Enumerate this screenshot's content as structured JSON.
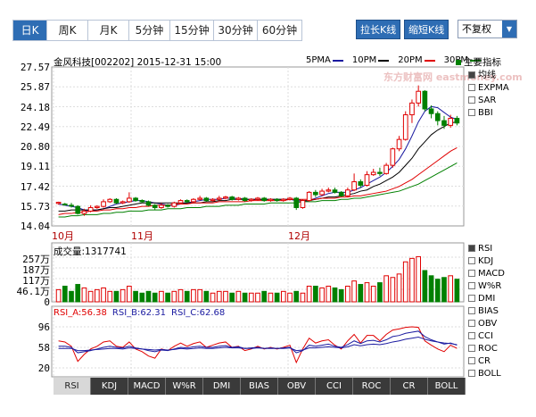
{
  "period_tabs": [
    {
      "label": "日K",
      "active": true
    },
    {
      "label": "周K"
    },
    {
      "label": "月K"
    },
    {
      "label": "5分钟"
    },
    {
      "label": "15分钟"
    },
    {
      "label": "30分钟"
    },
    {
      "label": "60分钟"
    }
  ],
  "buttons": {
    "zoom_in": "拉长K线",
    "zoom_out": "缩短K线"
  },
  "adjust_select": {
    "value": "不复权"
  },
  "stock_info": "金风科技[002202] 2015-12-31 15:00",
  "ma_legend": [
    {
      "label": "5PMA",
      "color": "#1a1aa0"
    },
    {
      "label": "10PM",
      "color": "#000000"
    },
    {
      "label": "20PM",
      "color": "#e00000"
    },
    {
      "label": "30PM",
      "color": "#008000"
    }
  ],
  "main_indicator_label": "主要指标",
  "watermark": "东方财富网 eastmoney.com",
  "price_axis": [
    "27.57",
    "25.87",
    "24.18",
    "22.49",
    "20.80",
    "19.11",
    "17.42",
    "15.73",
    "14.04"
  ],
  "month_labels": [
    "10月",
    "11月",
    "12月"
  ],
  "main_options": [
    {
      "label": "均线",
      "checked": true
    },
    {
      "label": "EXPMA"
    },
    {
      "label": "SAR"
    },
    {
      "label": "BBI"
    }
  ],
  "volume_label": "成交量:1317741",
  "volume_axis": [
    "257万",
    "187万",
    "117万",
    "46.1万",
    "0"
  ],
  "vol_options": [
    {
      "label": "RSI",
      "checked": true
    },
    {
      "label": "KDJ"
    },
    {
      "label": "MACD"
    },
    {
      "label": "W%R"
    },
    {
      "label": "DMI"
    },
    {
      "label": "BIAS"
    },
    {
      "label": "OBV"
    },
    {
      "label": "CCI"
    },
    {
      "label": "ROC"
    },
    {
      "label": "CR"
    },
    {
      "label": "BOLL"
    }
  ],
  "rsi_legend": [
    {
      "label": "RSI_A:56.38",
      "color": "#e00000"
    },
    {
      "label": "RSI_B:62.31",
      "color": "#1a1aa0"
    },
    {
      "label": "RSI_C:62.68",
      "color": "#1a1aa0"
    }
  ],
  "rsi_axis": [
    "96",
    "58",
    "20"
  ],
  "indicator_tabs": [
    {
      "label": "RSI",
      "active": true
    },
    {
      "label": "KDJ"
    },
    {
      "label": "MACD"
    },
    {
      "label": "W%R"
    },
    {
      "label": "DMI"
    },
    {
      "label": "BIAS"
    },
    {
      "label": "OBV"
    },
    {
      "label": "CCI"
    },
    {
      "label": "ROC"
    },
    {
      "label": "CR"
    },
    {
      "label": "BOLL"
    }
  ],
  "chart_data": {
    "type": "candlestick",
    "price_range": [
      14.04,
      27.57
    ],
    "candles": [
      [
        15.95,
        16.05,
        15.85,
        16.1
      ],
      [
        15.9,
        15.85,
        15.8,
        16.0
      ],
      [
        15.8,
        15.75,
        15.6,
        16.0
      ],
      [
        15.7,
        15.1,
        15.0,
        15.8
      ],
      [
        15.1,
        15.3,
        14.9,
        15.5
      ],
      [
        15.3,
        15.6,
        15.2,
        15.8
      ],
      [
        15.6,
        15.7,
        15.5,
        15.8
      ],
      [
        15.7,
        16.1,
        15.6,
        16.3
      ],
      [
        16.1,
        16.3,
        16.0,
        16.4
      ],
      [
        16.3,
        16.0,
        15.9,
        16.4
      ],
      [
        16.0,
        16.1,
        15.9,
        16.2
      ],
      [
        16.1,
        16.4,
        16.0,
        16.9
      ],
      [
        16.4,
        16.2,
        16.1,
        16.5
      ],
      [
        16.2,
        16.1,
        16.0,
        16.3
      ],
      [
        16.1,
        15.8,
        15.7,
        16.2
      ],
      [
        15.8,
        15.6,
        15.4,
        15.9
      ],
      [
        15.6,
        15.8,
        15.5,
        16.0
      ],
      [
        15.8,
        15.7,
        15.6,
        15.9
      ],
      [
        15.7,
        16.0,
        15.6,
        16.1
      ],
      [
        16.0,
        16.2,
        15.9,
        16.3
      ],
      [
        16.2,
        16.1,
        16.0,
        16.3
      ],
      [
        16.1,
        16.3,
        16.0,
        16.4
      ],
      [
        16.3,
        16.4,
        16.2,
        16.6
      ],
      [
        16.4,
        16.2,
        16.1,
        16.5
      ],
      [
        16.2,
        16.3,
        16.1,
        16.4
      ],
      [
        16.3,
        16.4,
        16.2,
        16.6
      ],
      [
        16.4,
        16.5,
        16.3,
        16.6
      ],
      [
        16.5,
        16.3,
        16.2,
        16.6
      ],
      [
        16.3,
        16.4,
        16.2,
        16.5
      ],
      [
        16.4,
        16.2,
        16.1,
        16.5
      ],
      [
        16.2,
        16.3,
        16.1,
        16.4
      ],
      [
        16.3,
        16.4,
        16.2,
        16.5
      ],
      [
        16.4,
        16.2,
        16.1,
        16.5
      ],
      [
        16.2,
        16.3,
        16.1,
        16.4
      ],
      [
        16.3,
        16.2,
        16.1,
        16.4
      ],
      [
        16.2,
        16.3,
        16.1,
        16.4
      ],
      [
        16.3,
        16.4,
        16.2,
        16.5
      ],
      [
        16.4,
        15.6,
        15.4,
        16.5
      ],
      [
        15.6,
        16.2,
        15.5,
        16.3
      ],
      [
        16.2,
        16.9,
        16.1,
        17.0
      ],
      [
        16.9,
        16.7,
        16.5,
        17.1
      ],
      [
        16.7,
        17.0,
        16.6,
        17.2
      ],
      [
        17.0,
        17.1,
        16.9,
        17.3
      ],
      [
        17.1,
        16.9,
        16.8,
        17.3
      ],
      [
        16.9,
        16.6,
        16.5,
        17.0
      ],
      [
        16.6,
        17.1,
        16.5,
        17.3
      ],
      [
        17.1,
        17.8,
        17.0,
        18.5
      ],
      [
        17.8,
        17.5,
        17.3,
        18.0
      ],
      [
        17.5,
        18.4,
        17.4,
        18.7
      ],
      [
        18.4,
        18.6,
        18.3,
        18.9
      ],
      [
        18.6,
        18.5,
        18.3,
        19.0
      ],
      [
        18.5,
        19.2,
        18.4,
        19.4
      ],
      [
        19.2,
        20.6,
        19.0,
        20.7
      ],
      [
        20.6,
        21.4,
        20.4,
        21.7
      ],
      [
        21.4,
        23.5,
        21.3,
        23.8
      ],
      [
        23.5,
        24.5,
        22.8,
        24.8
      ],
      [
        24.5,
        25.5,
        24.2,
        26.0
      ],
      [
        25.5,
        24.0,
        23.8,
        25.6
      ],
      [
        24.0,
        23.6,
        23.2,
        24.3
      ],
      [
        23.6,
        23.0,
        22.6,
        23.8
      ],
      [
        23.0,
        22.6,
        22.3,
        23.4
      ],
      [
        22.6,
        23.2,
        22.4,
        23.5
      ],
      [
        23.2,
        22.8,
        22.6,
        23.4
      ]
    ],
    "ma": {
      "5PMA": [
        15.9,
        15.8,
        15.7,
        15.6,
        15.4,
        15.3,
        15.4,
        15.5,
        15.7,
        15.9,
        16.0,
        16.1,
        16.2,
        16.2,
        16.1,
        16.0,
        15.9,
        15.8,
        15.8,
        15.9,
        16.0,
        16.1,
        16.2,
        16.3,
        16.3,
        16.3,
        16.4,
        16.4,
        16.4,
        16.3,
        16.3,
        16.3,
        16.3,
        16.3,
        16.3,
        16.3,
        16.3,
        16.2,
        16.1,
        16.2,
        16.4,
        16.6,
        16.8,
        16.9,
        16.9,
        16.9,
        17.1,
        17.3,
        17.6,
        17.9,
        18.2,
        18.6,
        19.1,
        19.7,
        20.6,
        21.7,
        22.9,
        23.8,
        24.2,
        24.1,
        23.7,
        23.3,
        23.1
      ],
      "10PM": [
        15.3,
        15.3,
        15.4,
        15.4,
        15.4,
        15.4,
        15.4,
        15.5,
        15.6,
        15.6,
        15.7,
        15.8,
        15.9,
        16.0,
        16.0,
        16.0,
        16.0,
        16.0,
        16.0,
        16.0,
        16.0,
        16.0,
        16.0,
        16.1,
        16.1,
        16.2,
        16.2,
        16.3,
        16.3,
        16.3,
        16.3,
        16.3,
        16.3,
        16.3,
        16.3,
        16.3,
        16.3,
        16.3,
        16.2,
        16.2,
        16.3,
        16.4,
        16.5,
        16.5,
        16.6,
        16.7,
        16.8,
        17.0,
        17.1,
        17.4,
        17.6,
        17.9,
        18.2,
        18.6,
        19.2,
        19.8,
        20.6,
        21.2,
        21.8,
        22.2,
        22.5,
        22.8,
        22.9
      ],
      "20PM": [
        15.0,
        15.1,
        15.1,
        15.2,
        15.2,
        15.3,
        15.3,
        15.4,
        15.4,
        15.5,
        15.5,
        15.6,
        15.6,
        15.7,
        15.7,
        15.8,
        15.8,
        15.8,
        15.9,
        15.9,
        15.9,
        16.0,
        16.0,
        16.0,
        16.0,
        16.1,
        16.1,
        16.1,
        16.1,
        16.1,
        16.2,
        16.2,
        16.2,
        16.2,
        16.2,
        16.2,
        16.3,
        16.3,
        16.3,
        16.3,
        16.3,
        16.4,
        16.4,
        16.4,
        16.5,
        16.5,
        16.6,
        16.6,
        16.7,
        16.8,
        16.9,
        17.0,
        17.2,
        17.4,
        17.7,
        18.0,
        18.4,
        18.8,
        19.2,
        19.6,
        20.0,
        20.4,
        20.7
      ],
      "30PM": [
        14.8,
        14.8,
        14.9,
        14.9,
        15.0,
        15.0,
        15.0,
        15.1,
        15.1,
        15.2,
        15.2,
        15.3,
        15.3,
        15.3,
        15.4,
        15.4,
        15.4,
        15.5,
        15.5,
        15.5,
        15.6,
        15.6,
        15.6,
        15.7,
        15.7,
        15.7,
        15.8,
        15.8,
        15.8,
        15.9,
        15.9,
        15.9,
        15.9,
        16.0,
        16.0,
        16.0,
        16.0,
        16.0,
        16.1,
        16.1,
        16.1,
        16.2,
        16.2,
        16.2,
        16.3,
        16.3,
        16.4,
        16.4,
        16.5,
        16.6,
        16.7,
        16.8,
        16.9,
        17.0,
        17.2,
        17.4,
        17.6,
        17.9,
        18.2,
        18.5,
        18.8,
        19.1,
        19.4
      ]
    },
    "volume": [
      0.7,
      0.9,
      0.6,
      1.0,
      0.8,
      0.6,
      0.7,
      0.8,
      0.6,
      0.6,
      0.7,
      0.9,
      0.6,
      0.5,
      0.6,
      0.5,
      0.6,
      0.5,
      0.6,
      0.7,
      0.6,
      0.7,
      0.7,
      0.6,
      0.5,
      0.6,
      0.6,
      0.5,
      0.6,
      0.5,
      0.5,
      0.5,
      0.6,
      0.5,
      0.5,
      0.6,
      0.5,
      0.6,
      0.5,
      0.9,
      0.9,
      0.8,
      0.9,
      0.8,
      0.7,
      0.9,
      1.2,
      1.0,
      1.1,
      0.9,
      1.1,
      1.5,
      1.4,
      1.6,
      2.3,
      2.5,
      2.6,
      1.8,
      1.5,
      1.3,
      1.4,
      1.5,
      1.3
    ],
    "rsi_a": [
      70,
      68,
      60,
      32,
      45,
      55,
      60,
      68,
      70,
      60,
      58,
      68,
      55,
      50,
      42,
      38,
      55,
      52,
      60,
      66,
      60,
      65,
      68,
      58,
      62,
      66,
      68,
      58,
      60,
      52,
      55,
      60,
      55,
      58,
      55,
      58,
      62,
      30,
      55,
      75,
      66,
      70,
      72,
      62,
      55,
      70,
      82,
      66,
      80,
      80,
      70,
      82,
      90,
      92,
      95,
      96,
      95,
      70,
      62,
      55,
      50,
      62,
      56
    ],
    "rsi_b": [
      60,
      60,
      58,
      48,
      50,
      52,
      55,
      58,
      60,
      58,
      57,
      60,
      57,
      55,
      52,
      50,
      53,
      52,
      55,
      58,
      57,
      59,
      60,
      58,
      58,
      60,
      61,
      58,
      59,
      56,
      57,
      58,
      56,
      57,
      56,
      57,
      58,
      48,
      52,
      62,
      60,
      62,
      64,
      60,
      58,
      63,
      70,
      65,
      70,
      71,
      68,
      72,
      78,
      80,
      84,
      86,
      88,
      78,
      72,
      68,
      64,
      66,
      62
    ],
    "rsi_c": [
      56,
      56,
      56,
      52,
      52,
      53,
      54,
      55,
      56,
      56,
      55,
      57,
      56,
      55,
      54,
      53,
      54,
      53,
      54,
      56,
      55,
      56,
      57,
      56,
      56,
      57,
      58,
      57,
      57,
      56,
      56,
      57,
      56,
      56,
      56,
      56,
      57,
      52,
      53,
      57,
      57,
      58,
      59,
      58,
      57,
      59,
      63,
      61,
      63,
      64,
      63,
      65,
      68,
      70,
      73,
      75,
      77,
      73,
      70,
      68,
      66,
      65,
      63
    ]
  }
}
